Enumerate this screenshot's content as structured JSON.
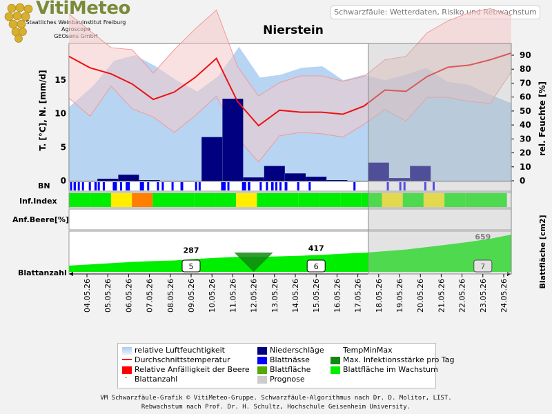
{
  "header": {
    "logo_name": "VitiMeteo",
    "logo_lines": [
      "Staatliches Weinbauinstitut Freiburg",
      "Agroscope",
      "GEOsens GmbH"
    ],
    "subtitle": "Schwarzfäule: Wetterdaten, Risiko und Rebwachstum",
    "station": "Nierstein"
  },
  "row_labels": {
    "bn": "BN",
    "inf": "Inf.Index",
    "anf": "Anf.Beere[%]",
    "blatt": "Blattanzahl"
  },
  "legend": {
    "humidity": "relative Luftfeuchtigkeit",
    "precip": "Niederschläge",
    "tempminmax": "TempMinMax",
    "avgtemp": "Durchschnittstemperatur",
    "wetness": "Blattnässe",
    "maxinf": "Max. Infektionsstärke pro Tag",
    "suscept": "Relative Anfälligkeit der Beere",
    "leafarea": "Blattfläche",
    "leafgrowth": "Blattfläche im Wachstum",
    "leafcount": "Blattanzahl",
    "forecast": "Prognose"
  },
  "footer": {
    "line1": "VM Schwarzfäule-Grafik © VitiMeteo-Gruppe. Schwarzfäule-Algorithmus nach Dr. D. Molitor, LIST.",
    "line2": "Rebwachstum nach Prof. Dr. H. Schultz, Hochschule Geisenheim University."
  },
  "colors": {
    "humidity": "#aaccf0",
    "precip": "#000080",
    "avgtemp": "#ee1111",
    "tempband": "#f5c8c8",
    "wetness": "#0000ff",
    "inf_low": "#00ee00",
    "inf_mid": "#ffee00",
    "inf_high": "#ff8000",
    "leaf": "#00ee00",
    "maxinf": "#118811",
    "forecast_overlay": "#bdbdbd"
  },
  "chart_data": {
    "type": "line",
    "dates": [
      "04.05.26",
      "05.05.26",
      "06.05.26",
      "07.05.26",
      "08.05.26",
      "09.05.26",
      "10.05.26",
      "11.05.26",
      "12.05.26",
      "13.05.26",
      "14.05.26",
      "15.05.26",
      "16.05.26",
      "17.05.26",
      "18.05.26",
      "19.05.26",
      "20.05.26",
      "21.05.26",
      "22.05.26",
      "23.05.26",
      "24.05.26"
    ],
    "forecast_from": "17.05.26",
    "ylabel_left": "T. [°C], N. [mm/d]",
    "ylabel_right": "rel. Feuchte [%]",
    "ylim_left": [
      0,
      20
    ],
    "ylim_right": [
      0,
      95
    ],
    "yticks_left": [
      0,
      5,
      10,
      15
    ],
    "yticks_right": [
      0,
      10,
      20,
      30,
      40,
      50,
      60,
      70,
      80,
      90
    ],
    "avg_temperature": [
      18.5,
      16.8,
      15.9,
      14.4,
      12.1,
      13.2,
      15.4,
      18.2,
      11.8,
      8.2,
      10.5,
      10.2,
      10.2,
      9.9,
      11.1,
      13.5,
      13.3,
      15.5,
      16.9,
      17.2,
      18.0,
      19.0
    ],
    "temp_max": [
      24.8,
      22.3,
      19.8,
      19.5,
      16.0,
      19.5,
      22.6,
      25.4,
      17.0,
      12.6,
      14.6,
      15.6,
      15.6,
      14.8,
      15.5,
      18.0,
      18.5,
      22.0,
      23.8,
      25.0,
      25.6,
      24.5
    ],
    "temp_min": [
      12.3,
      9.6,
      14.1,
      10.7,
      9.5,
      7.2,
      9.7,
      12.6,
      6.4,
      2.8,
      6.7,
      7.2,
      7.0,
      6.5,
      8.4,
      10.6,
      8.9,
      12.4,
      12.4,
      11.8,
      11.5,
      16.2
    ],
    "rel_humidity": [
      53,
      68,
      86,
      90,
      82,
      72,
      64,
      75,
      96,
      74,
      76,
      81,
      82,
      72,
      76,
      72,
      76,
      81,
      71,
      69,
      62,
      56
    ],
    "precipitation": [
      0.0,
      0.3,
      0.9,
      0.1,
      0.0,
      0.0,
      6.5,
      12.2,
      0.5,
      2.2,
      1.1,
      0.6,
      0.1,
      0.0,
      2.7,
      0.4,
      2.2,
      0.0,
      0.0,
      0.0,
      0.0
    ],
    "leaf_wetness_hours": [
      [
        0.05,
        0.12
      ],
      [
        0.22,
        0.33
      ],
      [
        0.42,
        0.48
      ],
      [
        0.62,
        0.72
      ],
      [
        0.95,
        1.05
      ],
      [
        1.22,
        1.33
      ],
      [
        1.38,
        1.48
      ],
      [
        1.62,
        1.72
      ],
      [
        2.1,
        2.3
      ],
      [
        2.45,
        2.55
      ],
      [
        2.72,
        2.78
      ],
      [
        2.82,
        2.9
      ],
      [
        3.4,
        3.6
      ],
      [
        3.75,
        3.85
      ],
      [
        4.22,
        4.3
      ],
      [
        4.45,
        4.55
      ],
      [
        4.92,
        5.02
      ],
      [
        5.35,
        5.48
      ],
      [
        6.05,
        6.12
      ],
      [
        6.22,
        6.3
      ],
      [
        7.3,
        7.52
      ],
      [
        7.6,
        7.68
      ],
      [
        8.3,
        8.5
      ],
      [
        8.58,
        8.7
      ],
      [
        9.15,
        9.25
      ],
      [
        9.45,
        9.55
      ],
      [
        9.7,
        9.82
      ],
      [
        9.9,
        9.98
      ],
      [
        10.1,
        10.2
      ],
      [
        10.35,
        10.48
      ],
      [
        10.95,
        11.05
      ],
      [
        11.5,
        11.6
      ],
      [
        13.65,
        13.75
      ],
      [
        15.25,
        15.35
      ],
      [
        15.85,
        15.95
      ],
      [
        16.05,
        16.15
      ],
      [
        17.05,
        17.15
      ],
      [
        17.45,
        17.55
      ]
    ],
    "infection_index": [
      "low",
      "low",
      "mid",
      "high",
      "low",
      "low",
      "low",
      "low",
      "mid",
      "low",
      "low",
      "low",
      "low",
      "low",
      "low",
      "mid",
      "low",
      "mid",
      "low",
      "low",
      "low"
    ],
    "max_infection_marker": "12.05.26",
    "leaf_count_markers": [
      {
        "date": "09.05.26",
        "value": 5
      },
      {
        "date": "15.05.26",
        "value": 6
      },
      {
        "date": "23.05.26",
        "value": 7
      }
    ],
    "leaf_area_labels": [
      {
        "date": "09.05.26",
        "value": 287
      },
      {
        "date": "15.05.26",
        "value": 417
      },
      {
        "date": "23.05.26",
        "value": 659
      }
    ],
    "leaf_area_label_right": "Blattfläche [cm2]",
    "leaf_area_ratio": [
      0.3,
      0.36,
      0.42,
      0.48,
      0.52,
      0.55,
      0.62,
      0.68,
      0.72,
      0.72,
      0.75,
      0.78,
      0.82,
      0.88,
      0.92,
      1.0,
      1.08,
      1.2,
      1.32,
      1.45,
      1.6,
      1.8
    ]
  }
}
